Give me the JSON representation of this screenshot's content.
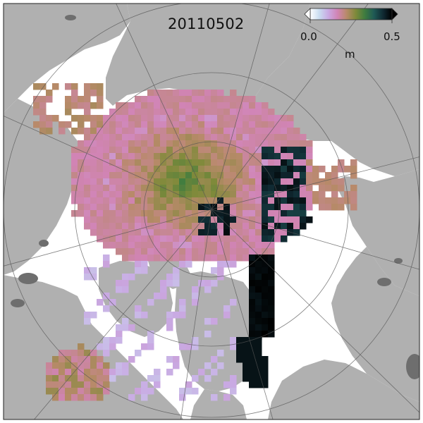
{
  "map": {
    "date_label": "20110502",
    "projection": "north polar stereographic",
    "quantity": "sea ice thickness anomaly / thickness field",
    "colorbar": {
      "min_label": "0.0",
      "max_label": "0.5",
      "unit_label": "m",
      "colormap": "cubehelix-like reversed (white → lavender → pink → olive green → dark teal → black)",
      "stops": [
        "#ffffff",
        "#c9ddf0",
        "#c9a9e3",
        "#d184b5",
        "#b88a6a",
        "#7f8a3a",
        "#3f7c3f",
        "#1f5a55",
        "#102a33",
        "#000000"
      ],
      "extend": "both"
    },
    "colors": {
      "land": "#b0b0b0",
      "ocean": "#ffffff",
      "lakes": "#6e6e6e",
      "graticule": "#555555"
    }
  }
}
